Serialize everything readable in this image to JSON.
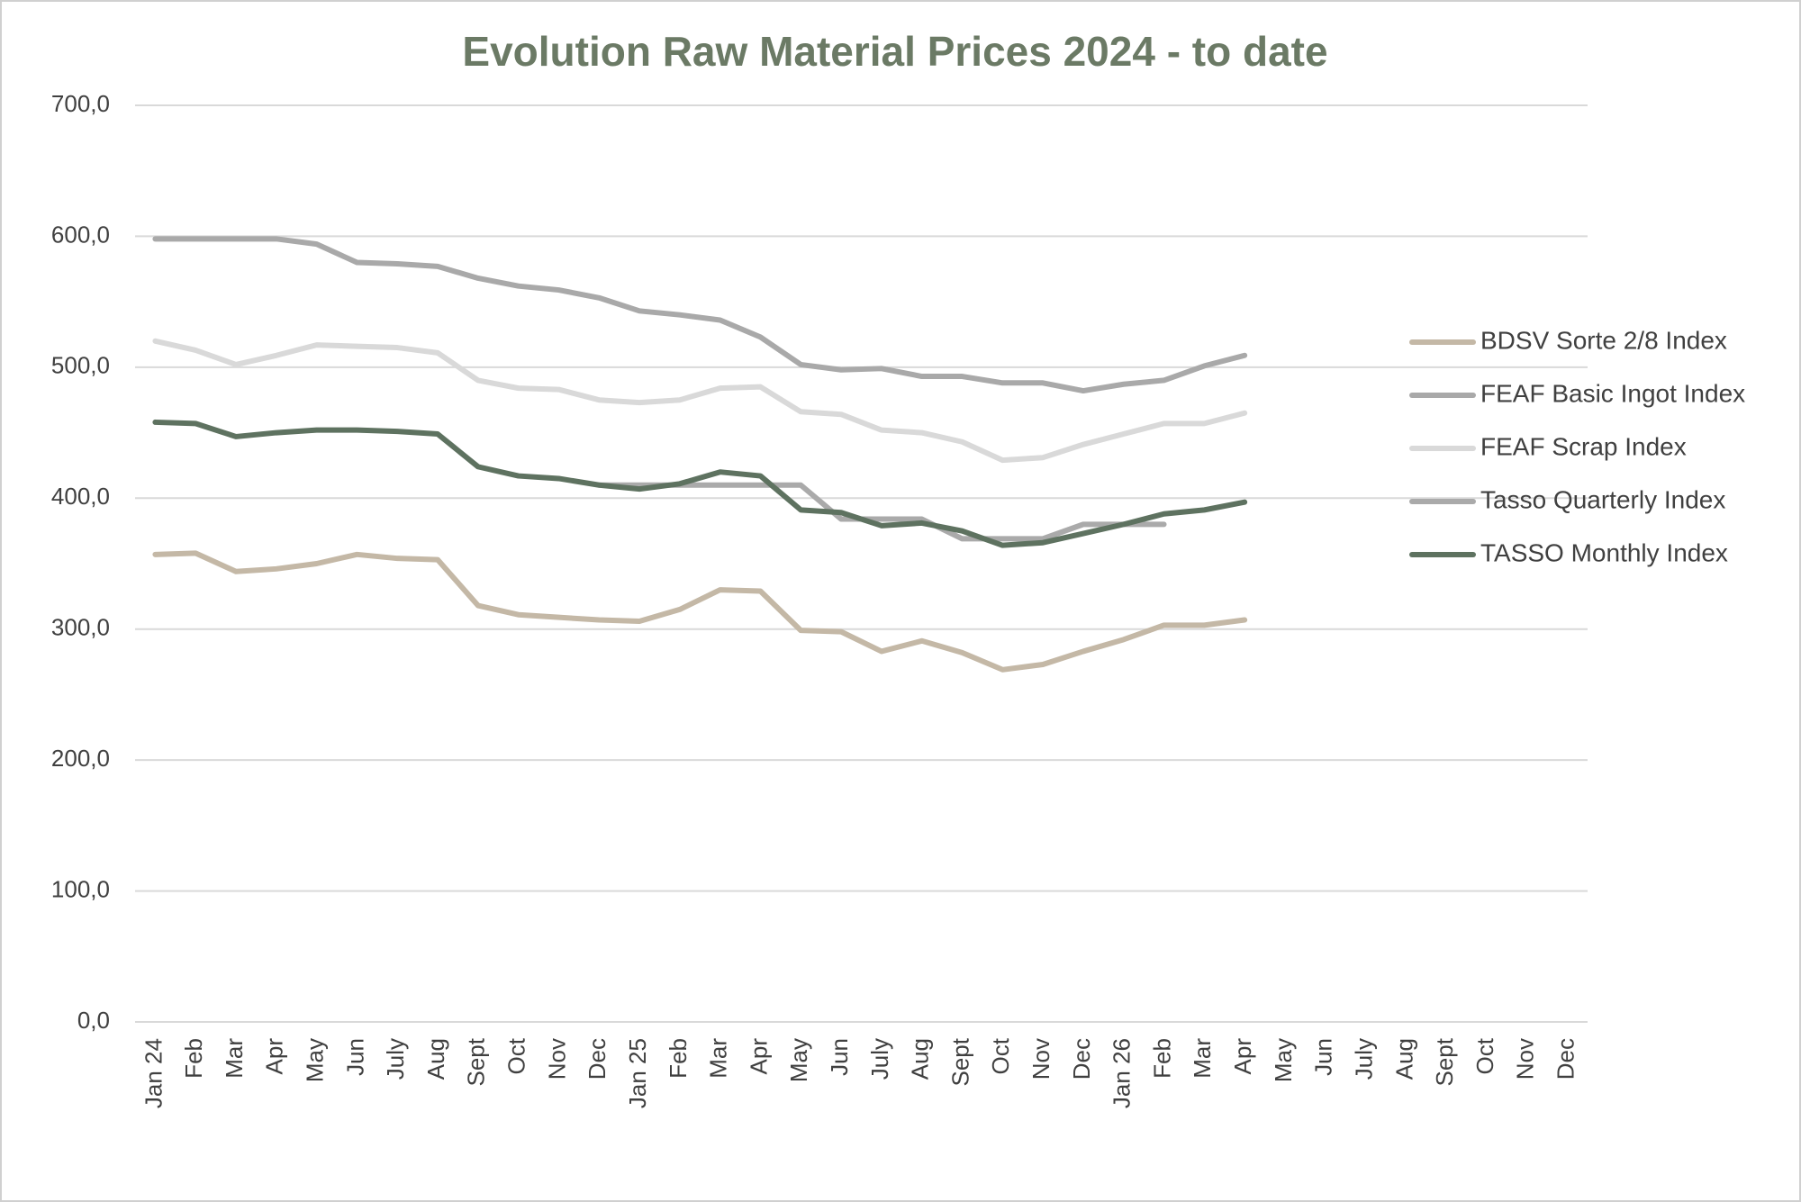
{
  "chart_data": {
    "type": "line",
    "title": "Evolution Raw Material Prices 2024 - to date",
    "categories": [
      "Jan 24",
      "Feb",
      "Mar",
      "Apr",
      "May",
      "Jun",
      "July",
      "Aug",
      "Sept",
      "Oct",
      "Nov",
      "Dec",
      "Jan 25",
      "Feb",
      "Mar",
      "Apr",
      "May",
      "Jun",
      "July",
      "Aug",
      "Sept",
      "Oct",
      "Nov",
      "Dec",
      "Jan 26",
      "Feb",
      "Mar",
      "Apr",
      "May",
      "Jun",
      "July",
      "Aug",
      "Sept",
      "Oct",
      "Nov",
      "Dec"
    ],
    "series": [
      {
        "name": "BDSV Sorte 2/8 Index",
        "color": "#c4b8a6",
        "values": [
          357,
          358,
          344,
          346,
          350,
          357,
          354,
          353,
          318,
          311,
          309,
          307,
          306,
          315,
          330,
          329,
          299,
          298,
          283,
          291,
          282,
          269,
          273,
          283,
          292,
          303,
          303,
          307,
          null,
          null,
          null,
          null,
          null,
          null,
          null,
          null
        ]
      },
      {
        "name": "FEAF Basic Ingot Index",
        "color": "#a9a9a9",
        "values": [
          598,
          598,
          598,
          598,
          594,
          580,
          579,
          577,
          568,
          562,
          559,
          553,
          543,
          540,
          536,
          523,
          502,
          498,
          499,
          493,
          493,
          488,
          488,
          482,
          487,
          490,
          501,
          509,
          null,
          null,
          null,
          null,
          null,
          null,
          null,
          null
        ]
      },
      {
        "name": "FEAF Scrap Index",
        "color": "#d9d9d9",
        "values": [
          520,
          513,
          502,
          509,
          517,
          516,
          515,
          511,
          490,
          484,
          483,
          475,
          473,
          475,
          484,
          485,
          466,
          464,
          452,
          450,
          443,
          429,
          431,
          441,
          449,
          457,
          457,
          465,
          null,
          null,
          null,
          null,
          null,
          null,
          null,
          null
        ]
      },
      {
        "name": "Tasso Quarterly Index",
        "color": "#aaaaaa",
        "values": [
          null,
          null,
          null,
          null,
          null,
          null,
          null,
          null,
          null,
          null,
          null,
          410,
          410,
          410,
          410,
          410,
          410,
          384,
          384,
          384,
          369,
          369,
          369,
          380,
          380,
          380,
          null,
          null,
          null,
          null,
          null,
          null,
          null,
          null,
          null,
          null
        ]
      },
      {
        "name": "TASSO Monthly Index",
        "color": "#5e7260",
        "values": [
          458,
          457,
          447,
          450,
          452,
          452,
          451,
          449,
          424,
          417,
          415,
          410,
          407,
          411,
          420,
          417,
          391,
          389,
          379,
          381,
          375,
          364,
          366,
          373,
          380,
          388,
          391,
          397,
          null,
          null,
          null,
          null,
          null,
          null,
          null,
          null
        ]
      }
    ],
    "ylim": [
      0,
      700
    ],
    "yticks": [
      {
        "value": 0,
        "label": "0,0"
      },
      {
        "value": 100,
        "label": "100,0"
      },
      {
        "value": 200,
        "label": "200,0"
      },
      {
        "value": 300,
        "label": "300,0"
      },
      {
        "value": 400,
        "label": "400,0"
      },
      {
        "value": 500,
        "label": "500,0"
      },
      {
        "value": 600,
        "label": "600,0"
      },
      {
        "value": 700,
        "label": "700,0"
      }
    ],
    "grid": true,
    "legend": "right"
  }
}
